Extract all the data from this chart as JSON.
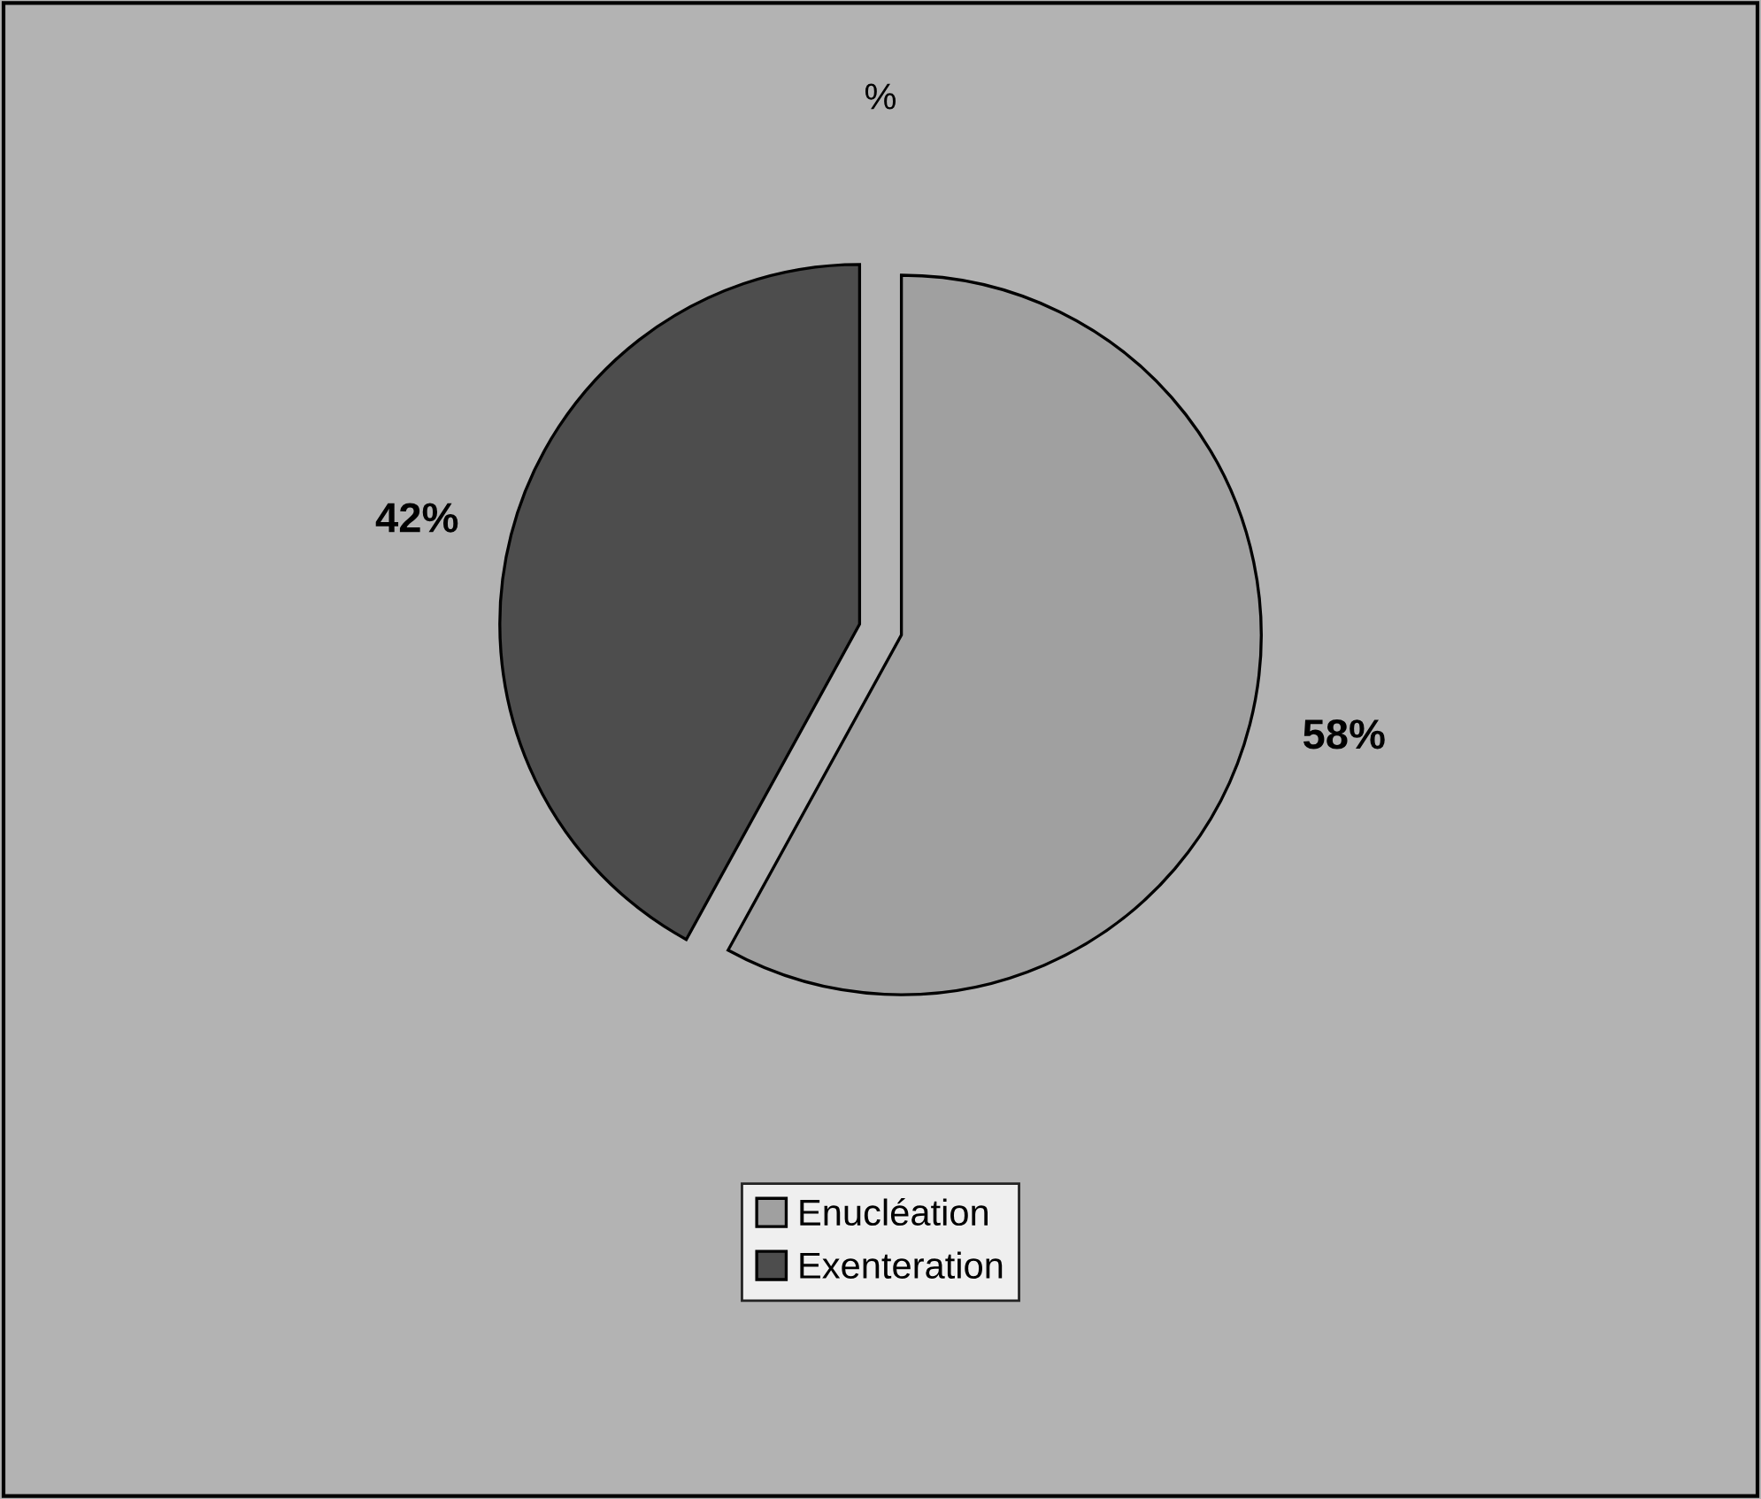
{
  "chart_data": {
    "type": "pie",
    "title": "%",
    "categories": [
      "Enucléation",
      "Exenteration"
    ],
    "values": [
      58,
      42
    ],
    "colors": [
      "#a0a0a0",
      "#4d4d4d"
    ],
    "value_labels": [
      "58%",
      "42%"
    ],
    "legend": "bottom"
  }
}
